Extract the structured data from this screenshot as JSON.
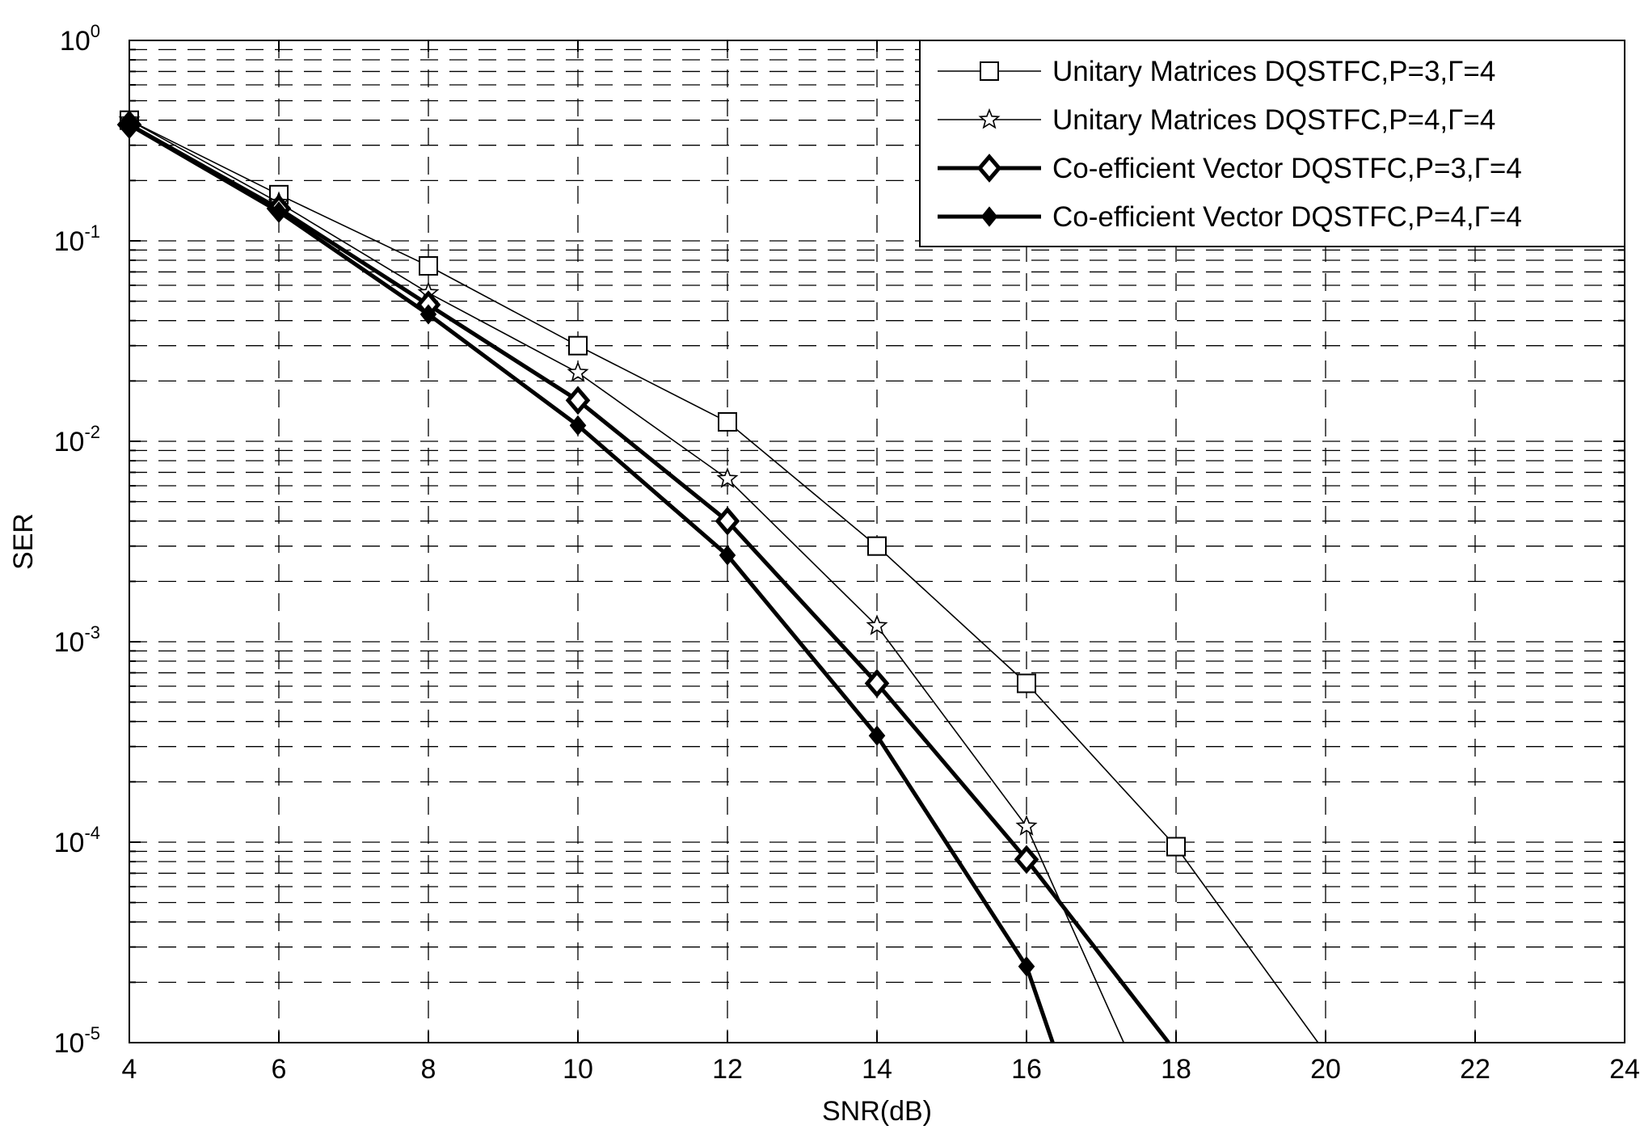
{
  "chart_data": {
    "type": "line",
    "xlabel": "SNR(dB)",
    "ylabel": "SER",
    "xlim": [
      4,
      24
    ],
    "ylim": [
      1e-05,
      1
    ],
    "yscale": "log",
    "grid": true,
    "legend_position": "top-right",
    "x_ticks": [
      "4",
      "6",
      "8",
      "10",
      "12",
      "14",
      "16",
      "18",
      "20",
      "22",
      "24"
    ],
    "y_ticks": [
      {
        "base": "10",
        "exp": "0"
      },
      {
        "base": "10",
        "exp": "-1"
      },
      {
        "base": "10",
        "exp": "-2"
      },
      {
        "base": "10",
        "exp": "-3"
      },
      {
        "base": "10",
        "exp": "-4"
      },
      {
        "base": "10",
        "exp": "-5"
      }
    ],
    "series": [
      {
        "name": "Unitary Matrices DQSTFC,P=3,Γ=4",
        "marker": "square",
        "line_weight": "thin",
        "color": "#000000",
        "x": [
          4,
          6,
          8,
          10,
          12,
          14,
          16,
          18,
          19.9
        ],
        "y": [
          0.4,
          0.17,
          0.075,
          0.03,
          0.0125,
          0.003,
          0.00062,
          9.5e-05,
          1e-05
        ]
      },
      {
        "name": "Unitary Matrices DQSTFC,P=4,Γ=4",
        "marker": "star",
        "line_weight": "thin",
        "color": "#000000",
        "x": [
          4,
          6,
          8,
          10,
          12,
          14,
          16,
          17.3
        ],
        "y": [
          0.4,
          0.155,
          0.055,
          0.022,
          0.0065,
          0.0012,
          0.00012,
          1e-05
        ]
      },
      {
        "name": "Co-efficient Vector DQSTFC,P=3,Γ=4",
        "marker": "diamond",
        "line_weight": "thick",
        "color": "#000000",
        "x": [
          4,
          6,
          8,
          10,
          12,
          14,
          16,
          17.9
        ],
        "y": [
          0.38,
          0.145,
          0.048,
          0.016,
          0.004,
          0.00062,
          8.2e-05,
          1e-05
        ]
      },
      {
        "name": "Co-efficient Vector DQSTFC,P=4,Γ=4",
        "marker": "filled-diamond",
        "line_weight": "thick",
        "color": "#000000",
        "x": [
          4,
          6,
          8,
          10,
          12,
          14,
          16,
          16.35
        ],
        "y": [
          0.38,
          0.14,
          0.043,
          0.012,
          0.0027,
          0.00034,
          2.4e-05,
          1e-05
        ]
      }
    ]
  }
}
